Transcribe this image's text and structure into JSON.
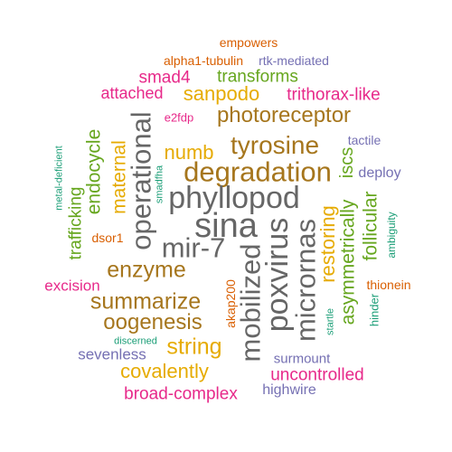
{
  "colors": {
    "teal": "#1b9e77",
    "orange": "#d95f02",
    "purple": "#7570b3",
    "magenta": "#e7298a",
    "green": "#66a61e",
    "gold": "#e6ab02",
    "brown": "#a6761d",
    "gray": "#666666"
  },
  "words": [
    {
      "text": "empowers",
      "color": "orange"
    },
    {
      "text": "alpha1-tubulin",
      "color": "orange"
    },
    {
      "text": "rtk-mediated",
      "color": "purple"
    },
    {
      "text": "smad4",
      "color": "magenta"
    },
    {
      "text": "transforms",
      "color": "green"
    },
    {
      "text": "attached",
      "color": "magenta"
    },
    {
      "text": "sanpodo",
      "color": "gold"
    },
    {
      "text": "trithorax-like",
      "color": "magenta"
    },
    {
      "text": "e2fdp",
      "color": "magenta"
    },
    {
      "text": "photoreceptor",
      "color": "brown"
    },
    {
      "text": "operational",
      "color": "gray"
    },
    {
      "text": "tyrosine",
      "color": "brown"
    },
    {
      "text": "tactile",
      "color": "purple"
    },
    {
      "text": "numb",
      "color": "gold"
    },
    {
      "text": "maternal",
      "color": "gold"
    },
    {
      "text": "endocycle",
      "color": "green"
    },
    {
      "text": "degradation",
      "color": "brown"
    },
    {
      "text": "iscs",
      "color": "green"
    },
    {
      "text": "deploy",
      "color": "purple"
    },
    {
      "text": "metal-deficient",
      "color": "teal"
    },
    {
      "text": "smadfha",
      "color": "teal"
    },
    {
      "text": "trafficking",
      "color": "green"
    },
    {
      "text": "phyllopod",
      "color": "gray"
    },
    {
      "text": "follicular",
      "color": "green"
    },
    {
      "text": "ambiguity",
      "color": "teal"
    },
    {
      "text": "sina",
      "color": "gray"
    },
    {
      "text": "dsor1",
      "color": "orange"
    },
    {
      "text": "mir-7",
      "color": "gray"
    },
    {
      "text": "asymmetrically",
      "color": "green"
    },
    {
      "text": "restoring",
      "color": "gold"
    },
    {
      "text": "enzyme",
      "color": "brown"
    },
    {
      "text": "mobilized",
      "color": "gray"
    },
    {
      "text": "poxvirus",
      "color": "gray"
    },
    {
      "text": "micrornas",
      "color": "gray"
    },
    {
      "text": "excision",
      "color": "magenta"
    },
    {
      "text": "thionein",
      "color": "orange"
    },
    {
      "text": "akap200",
      "color": "orange"
    },
    {
      "text": "summarize",
      "color": "brown"
    },
    {
      "text": "hinder",
      "color": "teal"
    },
    {
      "text": "oogenesis",
      "color": "brown"
    },
    {
      "text": "startle",
      "color": "teal"
    },
    {
      "text": "discerned",
      "color": "teal"
    },
    {
      "text": "string",
      "color": "gold"
    },
    {
      "text": "sevenless",
      "color": "purple"
    },
    {
      "text": "surmount",
      "color": "purple"
    },
    {
      "text": "covalently",
      "color": "gold"
    },
    {
      "text": "uncontrolled",
      "color": "magenta"
    },
    {
      "text": "broad-complex",
      "color": "magenta"
    },
    {
      "text": "highwire",
      "color": "purple"
    }
  ]
}
